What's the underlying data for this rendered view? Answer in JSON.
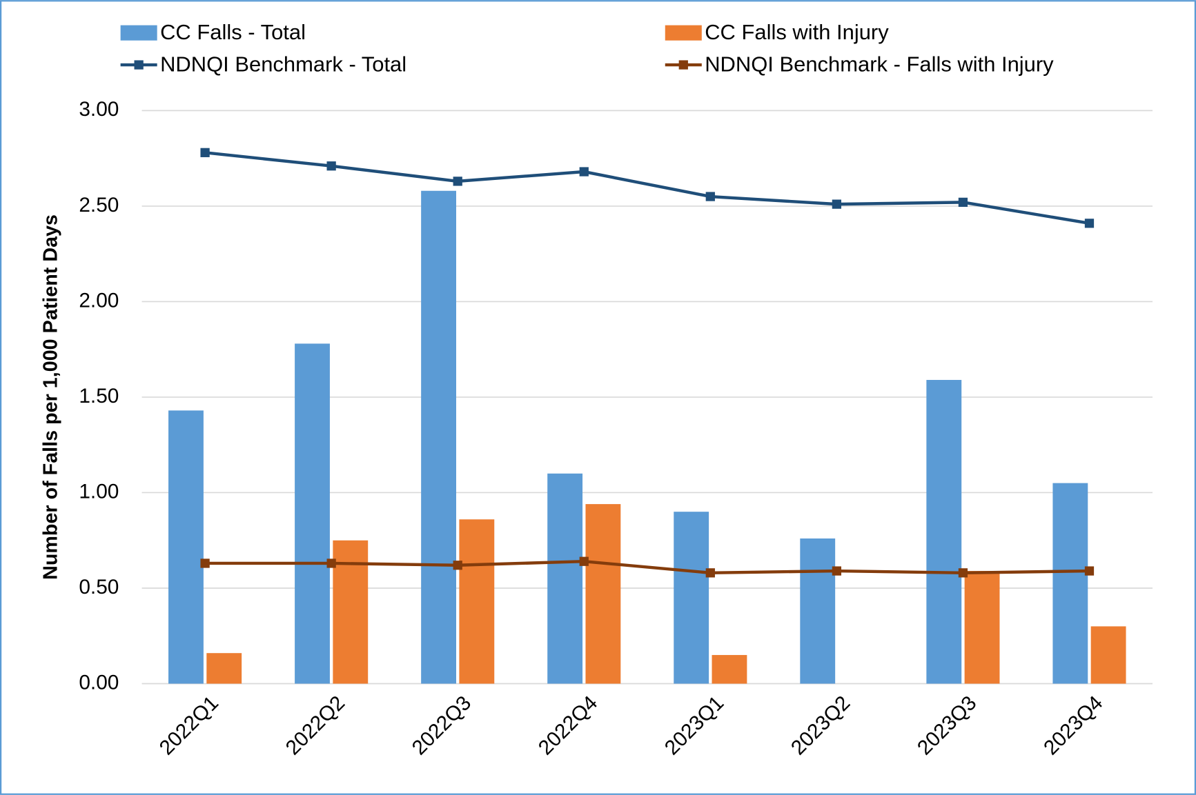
{
  "chart_data": {
    "type": "bar-line",
    "y_axis_label": "Number of Falls per 1,000 Patient Days",
    "categories": [
      "2022Q1",
      "2022Q2",
      "2022Q3",
      "2022Q4",
      "2023Q1",
      "2023Q2",
      "2023Q3",
      "2023Q4"
    ],
    "series": [
      {
        "name": "CC Falls - Total",
        "type": "bar",
        "color": "#5b9bd5",
        "values": [
          1.43,
          1.78,
          2.58,
          1.1,
          0.9,
          0.76,
          1.59,
          1.05
        ]
      },
      {
        "name": "CC Falls with Injury",
        "type": "bar",
        "color": "#ed7d31",
        "values": [
          0.16,
          0.75,
          0.86,
          0.94,
          0.15,
          null,
          0.59,
          0.3
        ]
      },
      {
        "name": "NDNQI Benchmark - Total",
        "type": "line",
        "color": "#1f4e79",
        "values": [
          2.78,
          2.71,
          2.63,
          2.68,
          2.55,
          2.51,
          2.52,
          2.41
        ]
      },
      {
        "name": "NDNQI Benchmark - Falls with Injury",
        "type": "line",
        "color": "#843c0c",
        "values": [
          0.63,
          0.63,
          0.62,
          0.64,
          0.58,
          0.59,
          0.58,
          0.59
        ]
      }
    ],
    "ylim": [
      0,
      3
    ],
    "yticks": [
      {
        "value": 0,
        "label": "0.00"
      },
      {
        "value": 0.5,
        "label": "0.50"
      },
      {
        "value": 1,
        "label": "1.00"
      },
      {
        "value": 1.5,
        "label": "1.50"
      },
      {
        "value": 2,
        "label": "2.00"
      },
      {
        "value": 2.5,
        "label": "2.50"
      },
      {
        "value": 3,
        "label": "3.00"
      }
    ],
    "grid": true,
    "legend": "top"
  }
}
